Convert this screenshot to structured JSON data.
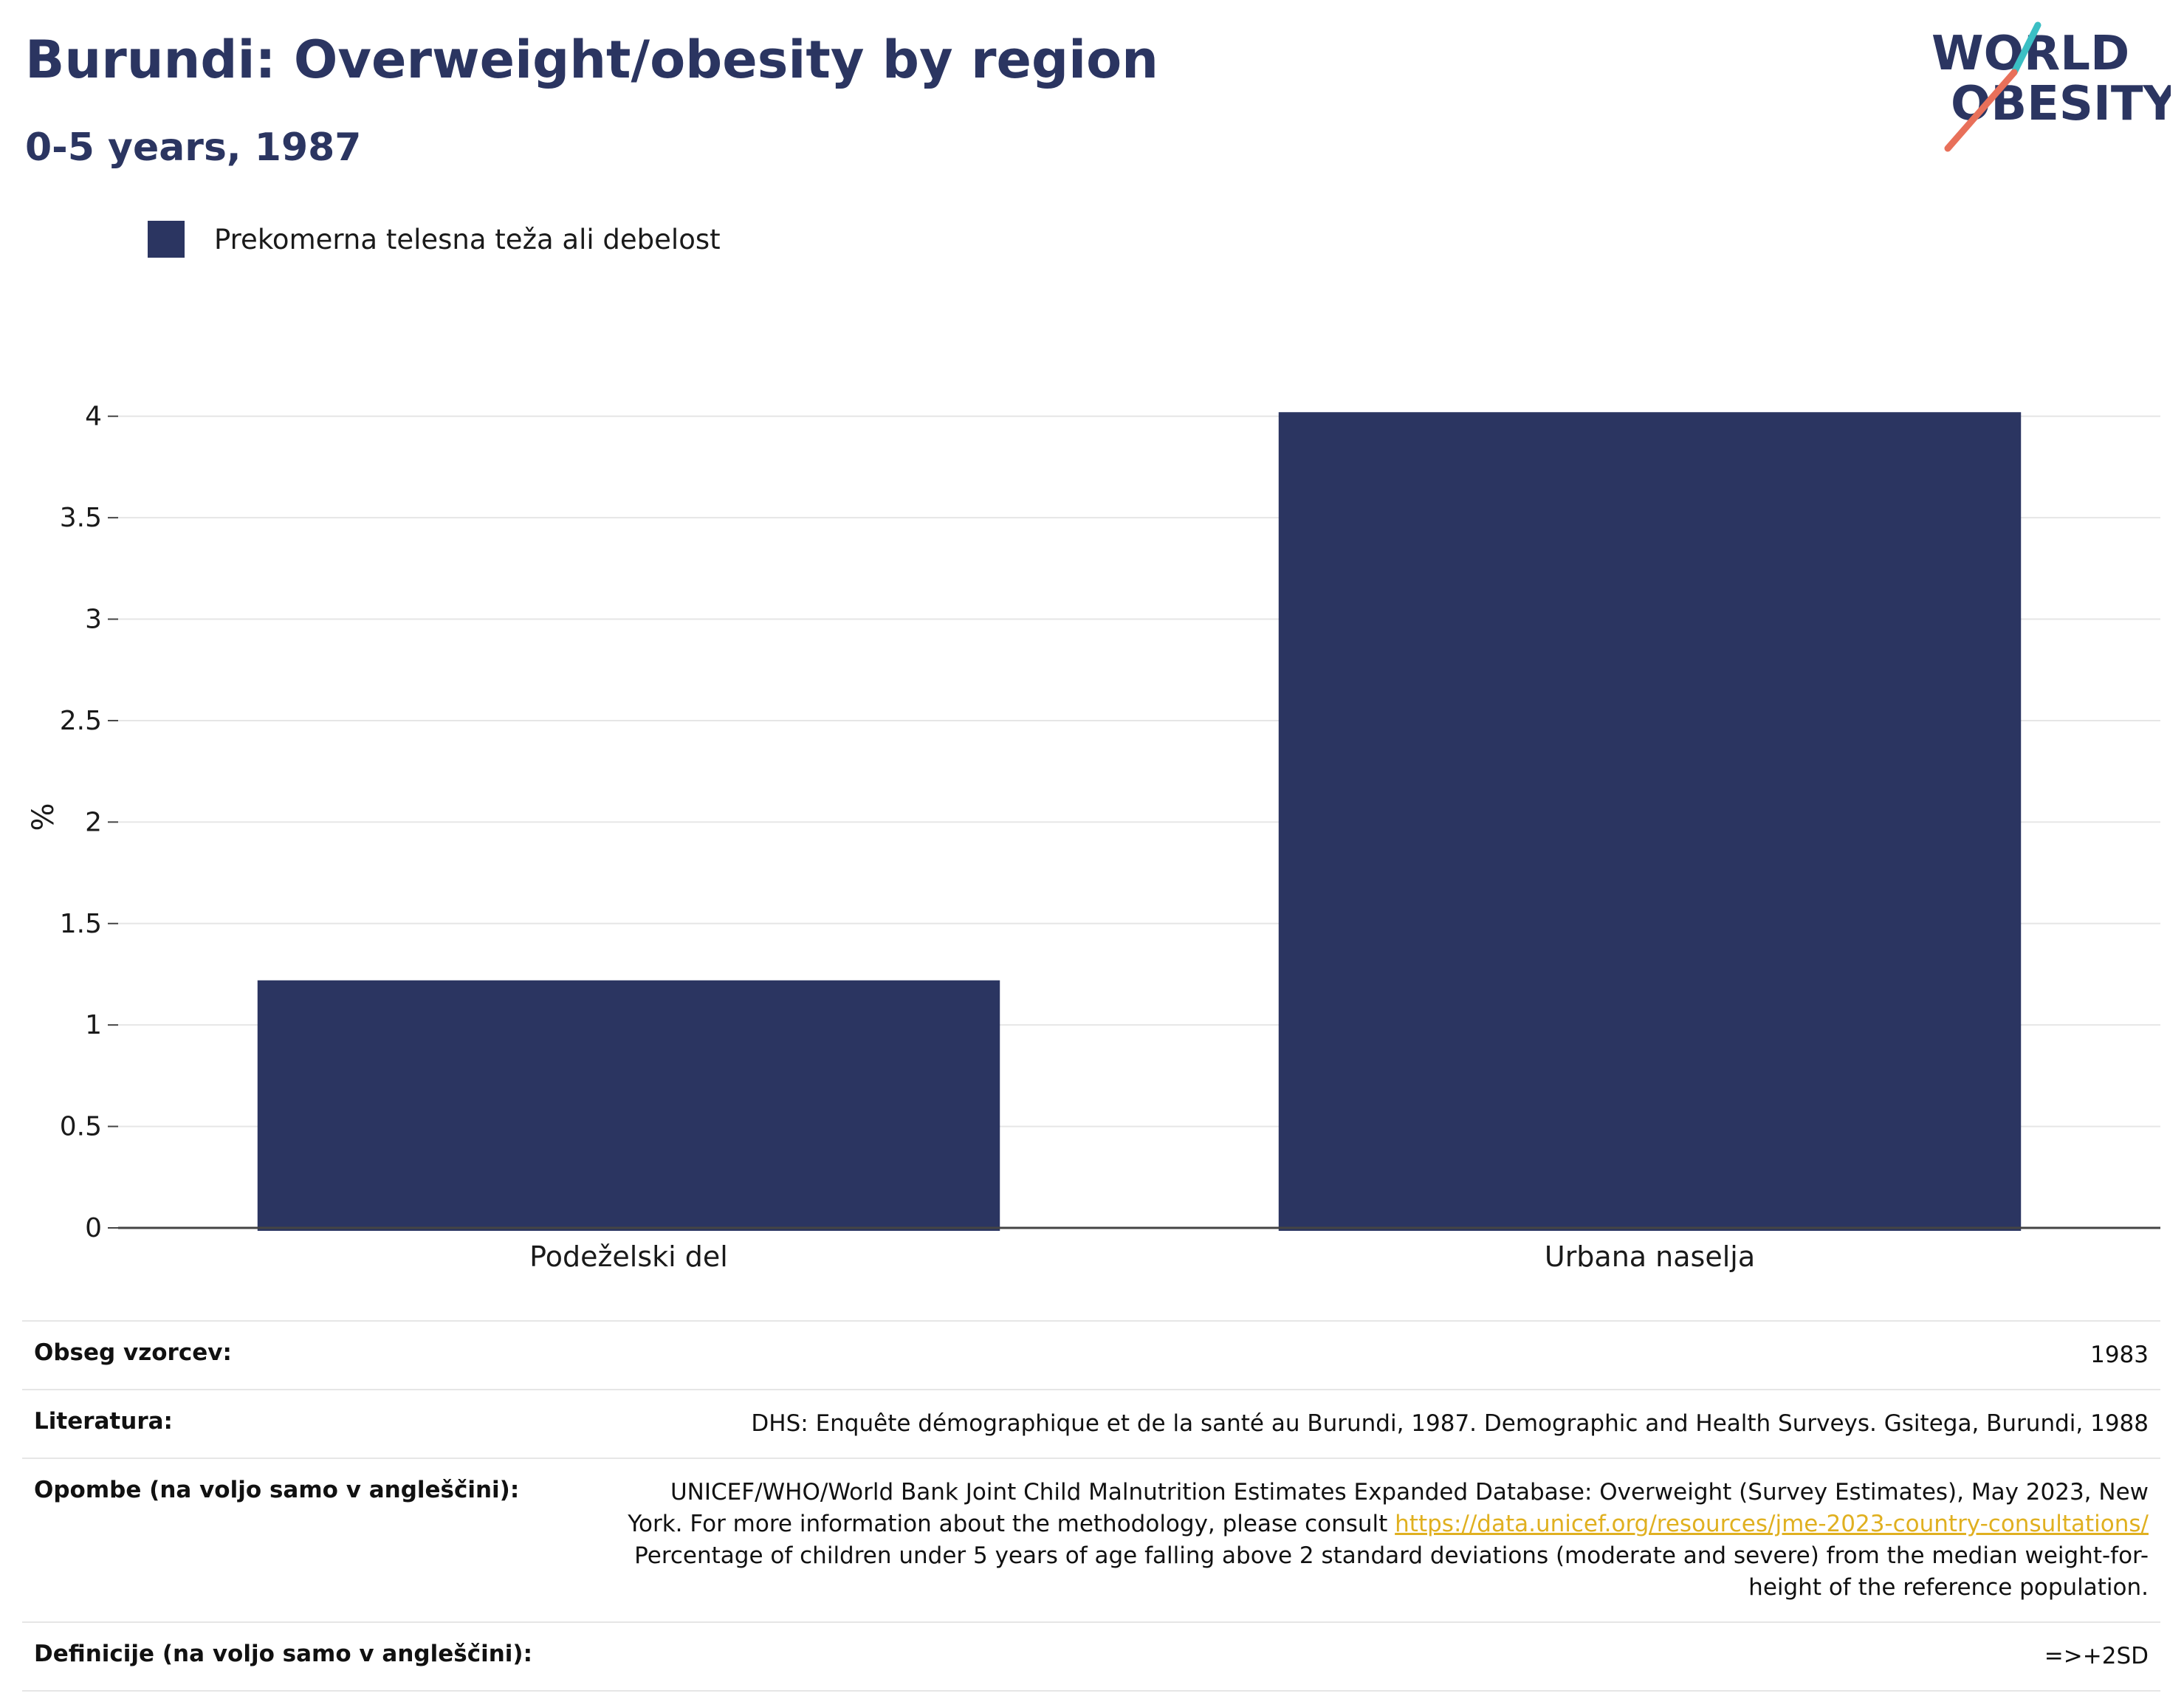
{
  "header": {
    "title": "Burundi: Overweight/obesity by region",
    "subtitle": "0-5 years, 1987"
  },
  "logo": {
    "line1": "WORLD",
    "line2": "OBESITY",
    "colors": {
      "text": "#2b3561",
      "slash_top": "#3bbfc4",
      "slash_bottom": "#e8705a"
    }
  },
  "chart_data": {
    "type": "bar",
    "categories": [
      "Podeželski del",
      "Urbana naselja"
    ],
    "series": [
      {
        "name": "Prekomerna telesna teža ali debelost",
        "values": [
          1.22,
          4.02
        ],
        "color": "#2b3561"
      }
    ],
    "ylabel": "%",
    "ylim": [
      0,
      4.05
    ],
    "yticks": [
      0,
      0.5,
      1,
      1.5,
      2,
      2.5,
      3,
      3.5,
      4
    ],
    "ytick_labels": [
      "0",
      "0.5",
      "1",
      "1.5",
      "2",
      "2.5",
      "3",
      "3.5",
      "4"
    ],
    "grid": true,
    "legend_position": "top-left"
  },
  "meta": {
    "rows": [
      {
        "label": "Obseg vzorcev:",
        "value": "1983"
      },
      {
        "label": "Literatura:",
        "value": "DHS: Enquête démographique et de la santé au Burundi, 1987. Demographic and Health Surveys. Gsitega, Burundi, 1988"
      },
      {
        "label": "Opombe (na voljo samo v angleščini):",
        "value_line1": "UNICEF/WHO/World Bank Joint Child Malnutrition Estimates Expanded Database: Overweight (Survey Estimates), May 2023, New",
        "value_line2_prefix": "York. For more information about the methodology, please consult ",
        "link": "https://data.unicef.org/resources/jme-2023-country-consultations/",
        "value_line3": "Percentage of children under 5 years of age falling above 2 standard deviations (moderate and severe) from the median weight-for-",
        "value_line4": "height of the reference population."
      },
      {
        "label": "Definicije (na voljo samo v angleščini):",
        "value": "=>+2SD"
      }
    ]
  }
}
